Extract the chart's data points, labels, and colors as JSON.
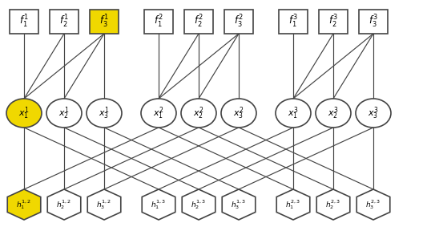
{
  "fig_width": 5.48,
  "fig_height": 2.83,
  "dpi": 100,
  "bg_color": "#ffffff",
  "yellow_fill": "#f0d800",
  "white_fill": "#ffffff",
  "edge_color": "#444444",
  "node_border_color": "#444444",
  "text_color": "#000000",
  "f_labels": [
    [
      "$f_1^1$",
      "$f_2^1$",
      "$f_3^1$"
    ],
    [
      "$f_1^2$",
      "$f_2^2$",
      "$f_3^2$"
    ],
    [
      "$f_1^3$",
      "$f_2^3$",
      "$f_3^3$"
    ]
  ],
  "x_labels": [
    [
      "$x_1^1$",
      "$x_2^1$",
      "$x_3^1$"
    ],
    [
      "$x_1^2$",
      "$x_2^2$",
      "$x_3^2$"
    ],
    [
      "$x_1^3$",
      "$x_2^3$",
      "$x_3^3$"
    ]
  ],
  "h_labels": [
    [
      "$h_1^{1,2}$",
      "$h_2^{1,2}$",
      "$h_3^{1,2}$"
    ],
    [
      "$h_1^{1,3}$",
      "$h_2^{1,3}$",
      "$h_3^{1,3}$"
    ],
    [
      "$h_1^{2,3}$",
      "$h_2^{2,3}$",
      "$h_3^{2,3}$"
    ]
  ],
  "f_highlighted": [
    [
      0,
      2
    ]
  ],
  "x_highlighted": [
    [
      0,
      0
    ]
  ],
  "h_highlighted": [
    [
      0,
      0
    ]
  ]
}
